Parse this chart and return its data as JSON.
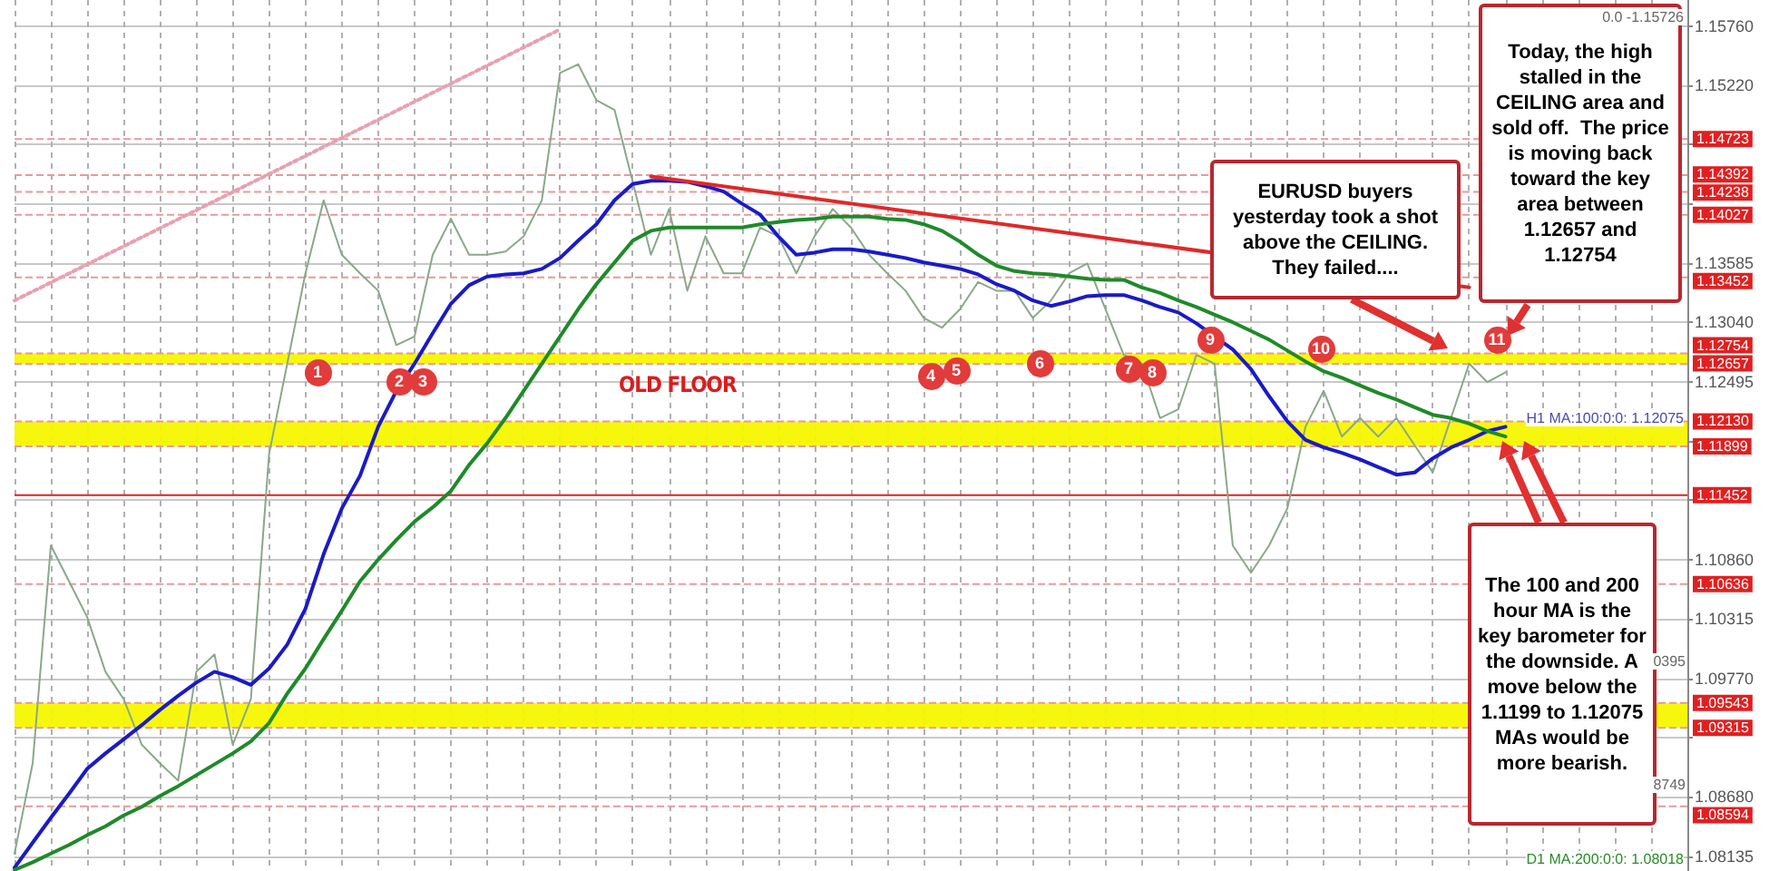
{
  "chart_data": {
    "type": "line",
    "categories": [
      null,
      null,
      null,
      null,
      null,
      null,
      null,
      null,
      null,
      null,
      null,
      null,
      null,
      null,
      null,
      null,
      null,
      null,
      null,
      null,
      null,
      null,
      null,
      null,
      null,
      null,
      null,
      null,
      null,
      null,
      null,
      null,
      null,
      null,
      null,
      null,
      null,
      null,
      null,
      null,
      null,
      null,
      null,
      null,
      null,
      null,
      null,
      null,
      null,
      null,
      null,
      null,
      null,
      null,
      null,
      null,
      null,
      null,
      null,
      null,
      null,
      null,
      null,
      null,
      null,
      null,
      null,
      null,
      null,
      null,
      null,
      null,
      null,
      null,
      null,
      null,
      null,
      null,
      null,
      null,
      null,
      null,
      null,
      null,
      null,
      null,
      null,
      null,
      null,
      null,
      null,
      null,
      null
    ],
    "series": [
      {
        "color": "#8aa88a",
        "values": [
          1.0816,
          1.0899,
          1.1099,
          1.1066,
          1.1033,
          1.0983,
          1.0958,
          1.0916,
          1.0899,
          1.0883,
          1.0983,
          1.0999,
          1.0916,
          1.0958,
          1.1183,
          1.1266,
          1.1349,
          1.1416,
          1.1366,
          1.1349,
          1.1333,
          1.1283,
          1.1291,
          1.1366,
          1.1399,
          1.1366,
          1.1366,
          1.1369,
          1.1383,
          1.1416,
          1.1533,
          1.1541,
          1.1508,
          1.1499,
          1.1433,
          1.1366,
          1.1408,
          1.1333,
          1.1383,
          1.1349,
          1.1349,
          1.1391,
          1.1383,
          1.1349,
          1.1383,
          1.1408,
          1.1391,
          1.1366,
          1.1349,
          1.1333,
          1.1308,
          1.1299,
          1.1316,
          1.1341,
          1.1333,
          1.1333,
          1.1308,
          1.1324,
          1.1349,
          1.1358,
          1.1316,
          1.1274,
          1.1266,
          1.1216,
          1.1224,
          1.1274,
          1.1266,
          1.1099,
          1.1074,
          1.1099,
          1.1133,
          1.1208,
          1.1241,
          1.1199,
          1.1216,
          1.1199,
          1.1216,
          1.1191,
          1.1166,
          1.1216,
          1.1266,
          1.1249,
          1.1258,
          null,
          null,
          null,
          null,
          null,
          null,
          null,
          null,
          null,
          null
        ]
      },
      {
        "color": "#1a1ac8",
        "values": [
          1.0803,
          1.0826,
          1.0849,
          1.0871,
          1.0894,
          1.0908,
          1.0921,
          1.0934,
          1.0948,
          1.0961,
          1.0973,
          1.0983,
          1.0978,
          1.0971,
          1.0986,
          1.1008,
          1.1041,
          1.1091,
          1.1133,
          1.1163,
          1.1208,
          1.1241,
          1.1266,
          1.1294,
          1.1321,
          1.1338,
          1.1346,
          1.1348,
          1.1349,
          1.1353,
          1.1363,
          1.1379,
          1.1394,
          1.1416,
          1.1431,
          1.1434,
          1.1434,
          1.1433,
          1.1429,
          1.1424,
          1.1413,
          1.1403,
          1.1383,
          1.1366,
          1.1368,
          1.1371,
          1.1371,
          1.1369,
          1.1366,
          1.1363,
          1.1359,
          1.1356,
          1.1353,
          1.1348,
          1.1339,
          1.1333,
          1.1324,
          1.1319,
          1.1323,
          1.1328,
          1.1329,
          1.1329,
          1.1324,
          1.1318,
          1.1313,
          1.1303,
          1.1291,
          1.1279,
          1.1261,
          1.1236,
          1.1213,
          1.1196,
          1.1189,
          1.1184,
          1.1178,
          1.1171,
          1.1164,
          1.1166,
          1.1179,
          1.1189,
          1.1196,
          1.1204,
          1.1208,
          null,
          null,
          null,
          null,
          null,
          null,
          null,
          null,
          null,
          null
        ]
      },
      {
        "color": "#1f8a2a",
        "values": [
          1.0801,
          1.0808,
          1.0816,
          1.0824,
          1.0833,
          1.0841,
          1.0851,
          1.0859,
          1.0869,
          1.0878,
          1.0888,
          1.0898,
          1.0908,
          1.0919,
          1.0936,
          1.0963,
          1.0986,
          1.1013,
          1.1039,
          1.1066,
          1.1086,
          1.1104,
          1.1121,
          1.1134,
          1.1149,
          1.1173,
          1.1193,
          1.1216,
          1.1241,
          1.1266,
          1.1291,
          1.1316,
          1.1339,
          1.1359,
          1.1379,
          1.1388,
          1.1391,
          1.1391,
          1.1391,
          1.1391,
          1.1391,
          1.1394,
          1.1396,
          1.1398,
          1.1399,
          1.1401,
          1.1401,
          1.1401,
          1.1399,
          1.1398,
          1.1394,
          1.1388,
          1.1378,
          1.1366,
          1.1356,
          1.1351,
          1.1349,
          1.1348,
          1.1346,
          1.1344,
          1.1343,
          1.1343,
          1.1336,
          1.1331,
          1.1324,
          1.1318,
          1.1311,
          1.1304,
          1.1296,
          1.1288,
          1.1278,
          1.1268,
          1.1259,
          1.1253,
          1.1246,
          1.1239,
          1.1233,
          1.1226,
          1.1219,
          1.1216,
          1.1211,
          1.1204,
          1.1199,
          null,
          null,
          null,
          null,
          null,
          null,
          null,
          null,
          null,
          null
        ]
      },
      {
        "color": "#e02828",
        "values": [
          null,
          null,
          null,
          null,
          null,
          null,
          null,
          null,
          null,
          null,
          null,
          null,
          null,
          null,
          null,
          null,
          null,
          null,
          null,
          null,
          null,
          null,
          null,
          null,
          null,
          null,
          null,
          null,
          null,
          null,
          null,
          null,
          null,
          null,
          null,
          1.1438,
          null,
          null,
          null,
          null,
          null,
          null,
          null,
          null,
          null,
          null,
          null,
          null,
          null,
          null,
          null,
          null,
          null,
          null,
          null,
          null,
          null,
          null,
          null,
          null,
          null,
          null,
          null,
          null,
          null,
          null,
          null,
          null,
          null,
          null,
          null,
          null,
          null,
          null,
          null,
          null,
          null,
          null,
          null,
          null,
          1.1336,
          null,
          null,
          null,
          null,
          null,
          null,
          null,
          null,
          null,
          null,
          null,
          null
        ]
      },
      {
        "color": "#e8a0b0",
        "line_style": "dotted",
        "values": [
          1.1324,
          null,
          null,
          null,
          null,
          null,
          null,
          null,
          null,
          null,
          null,
          null,
          null,
          null,
          null,
          null,
          null,
          null,
          null,
          null,
          null,
          null,
          null,
          null,
          null,
          null,
          null,
          null,
          null,
          null,
          1.1573,
          null,
          null,
          null,
          null,
          null,
          null,
          null,
          null,
          null,
          null,
          null,
          null,
          null,
          null,
          null,
          null,
          null,
          null,
          null,
          null,
          null,
          null,
          null,
          null,
          null,
          null,
          null,
          null,
          null,
          null,
          null,
          null,
          null,
          null,
          null,
          null,
          null,
          null,
          null,
          null,
          null,
          null,
          null,
          null,
          null,
          null,
          null,
          null,
          null,
          null,
          null,
          null,
          null,
          null,
          null,
          null,
          null,
          null,
          null,
          null,
          null,
          null
        ]
      }
    ],
    "ylim": [
      1.08,
      1.16
    ],
    "yticks": [
      {
        "value": 1.1576,
        "label": "1.15760"
      },
      {
        "value": 1.1522,
        "label": "1.15220"
      },
      {
        "value": 1.14675,
        "label": null
      },
      {
        "value": 1.1413,
        "label": null
      },
      {
        "value": 1.13585,
        "label": "1.13585"
      },
      {
        "value": 1.1304,
        "label": "1.13040"
      },
      {
        "value": 1.12495,
        "label": "1.12495"
      },
      {
        "value": 1.1195,
        "label": null
      },
      {
        "value": 1.11405,
        "label": null
      },
      {
        "value": 1.1086,
        "label": "1.10860"
      },
      {
        "value": 1.10315,
        "label": "1.10315"
      },
      {
        "value": 1.0977,
        "label": "1.09770"
      },
      {
        "value": 1.09225,
        "label": null
      },
      {
        "value": 1.0868,
        "label": "1.08680"
      },
      {
        "value": 1.08135,
        "label": "1.08135"
      }
    ],
    "tick_labels": "y",
    "grid": true,
    "bands": [
      {
        "axis": "y",
        "from": 1.12657,
        "to": 1.12754,
        "color": "#f7f700"
      },
      {
        "axis": "y",
        "from": 1.11899,
        "to": 1.1213,
        "color": "#f7f700"
      },
      {
        "axis": "y",
        "from": 1.09315,
        "to": 1.09543,
        "color": "#f7f700"
      }
    ],
    "ref_lines": [
      {
        "axis": "y",
        "value": 1.14723,
        "label": "1.14723",
        "color": "#e89a9a",
        "line_style": "dashed"
      },
      {
        "axis": "y",
        "value": 1.14392,
        "label": "1.14392",
        "color": "#e89a9a",
        "line_style": "dashed"
      },
      {
        "axis": "y",
        "value": 1.14238,
        "label": "1.14238",
        "color": "#e89a9a",
        "line_style": "dashed"
      },
      {
        "axis": "y",
        "value": 1.14027,
        "label": "1.14027",
        "color": "#e89a9a",
        "line_style": "dashed"
      },
      {
        "axis": "y",
        "value": 1.13452,
        "label": "1.13452",
        "color": "#e89a9a",
        "line_style": "dashed"
      },
      {
        "axis": "y",
        "value": 1.12754,
        "label": "1.12754",
        "color": "#e89a9a",
        "line_style": "dashed"
      },
      {
        "axis": "y",
        "value": 1.12657,
        "label": "1.12657",
        "color": "#e89a9a",
        "line_style": "dashed"
      },
      {
        "axis": "y",
        "value": 1.1213,
        "label": "1.12130",
        "color": "#e89a9a",
        "line_style": "dashed"
      },
      {
        "axis": "y",
        "value": 1.11899,
        "label": "1.11899",
        "color": "#e89a9a",
        "line_style": "dashed"
      },
      {
        "axis": "y",
        "value": 1.11452,
        "label": "1.11452",
        "color": "#dd2222",
        "line_style": "solid"
      },
      {
        "axis": "y",
        "value": 1.10636,
        "label": "1.10636",
        "color": "#e89a9a",
        "line_style": "dashed"
      },
      {
        "axis": "y",
        "value": 1.09543,
        "label": "1.09543",
        "color": "#e89a9a",
        "line_style": "dashed"
      },
      {
        "axis": "y",
        "value": 1.09315,
        "label": "1.09315",
        "color": "#e89a9a",
        "line_style": "dashed"
      },
      {
        "axis": "y",
        "value": 1.08594,
        "label": "1.08594",
        "color": "#e89a9a",
        "line_style": "dashed"
      }
    ],
    "annotations": [
      "OLD FLOOR",
      "1",
      "2",
      "3",
      "4",
      "5",
      "6",
      "7",
      "8",
      "9",
      "10",
      "11",
      "EURUSD buyers yesterday took a shot above the CEILING. They failed....",
      "Today, the high stalled in the CEILING area and sold off.  The price is moving back toward the key area between 1.12657 and 1.12754",
      "The 100 and 200 hour MA is the key barometer for the downside. A move below the 1.1199 to 1.12075 MAs would be more bearish.",
      "0.0 -1.15726",
      "H1 MA:100:0:0: 1.12075",
      "D1 MA:200:0:0: 1.08018",
      "0395",
      "8749"
    ]
  }
}
